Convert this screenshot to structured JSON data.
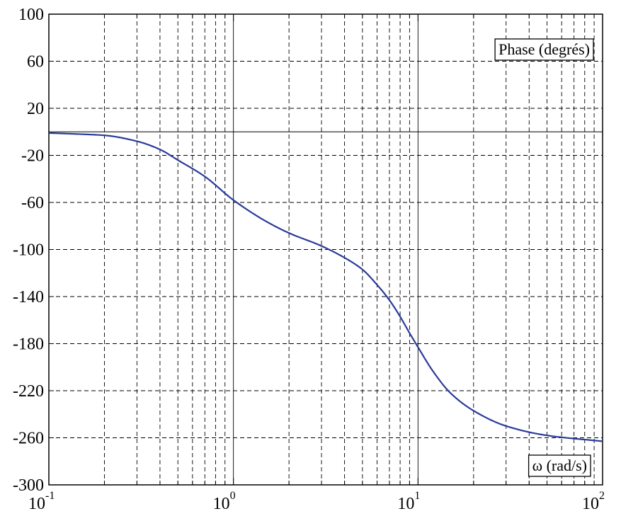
{
  "chart_data": {
    "type": "line",
    "title": "",
    "x_scale": "log",
    "xlim": [
      0.1,
      100
    ],
    "ylim": [
      -300,
      100
    ],
    "grid": true,
    "x_ticks": [
      {
        "base": "10",
        "exp": "-1"
      },
      {
        "base": "10",
        "exp": "0"
      },
      {
        "base": "10",
        "exp": "1"
      },
      {
        "base": "10",
        "exp": "2"
      }
    ],
    "y_ticks": [
      "100",
      "60",
      "20",
      "-20",
      "-60",
      "-100",
      "-140",
      "-180",
      "-220",
      "-260",
      "-300"
    ],
    "labels": {
      "ylabel_box": "Phase (degrés)",
      "xlabel_box": "ω (rad/s)"
    },
    "colors": {
      "curve": "#2a3b9a",
      "grid": "#000000",
      "axis": "#000000"
    },
    "series": [
      {
        "x": [
          0.1,
          0.15,
          0.2,
          0.3,
          0.4,
          0.5,
          0.7,
          1.0,
          1.5,
          2.0,
          3.0,
          4.0,
          5.0,
          6.0,
          7.0,
          8.0,
          9.0,
          10.0,
          12.0,
          15.0,
          20.0,
          30.0,
          50.0,
          100.0
        ],
        "y": [
          -1,
          -2,
          -3,
          -8,
          -15,
          -24,
          -38,
          -58,
          -76,
          -86,
          -97,
          -107,
          -117,
          -130,
          -143,
          -157,
          -171,
          -183,
          -203,
          -222,
          -237,
          -250,
          -258,
          -263
        ]
      }
    ]
  }
}
